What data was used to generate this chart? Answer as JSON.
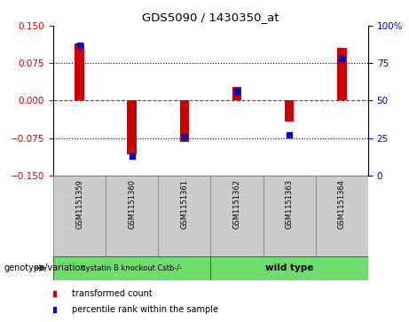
{
  "title": "GDS5090 / 1430350_at",
  "samples": [
    "GSM1151359",
    "GSM1151360",
    "GSM1151361",
    "GSM1151362",
    "GSM1151363",
    "GSM1151364"
  ],
  "red_values": [
    0.115,
    -0.107,
    -0.082,
    0.028,
    -0.042,
    0.105
  ],
  "blue_values_pct": [
    87,
    13,
    26,
    56,
    27,
    78
  ],
  "group1_label": "cystatin B knockout Cstb-/-",
  "group2_label": "wild type",
  "group_color": "#6ddd6d",
  "ylim_left": [
    -0.15,
    0.15
  ],
  "ylim_right": [
    0,
    100
  ],
  "yticks_left": [
    -0.15,
    -0.075,
    0,
    0.075,
    0.15
  ],
  "yticks_right": [
    0,
    25,
    50,
    75,
    100
  ],
  "red_color": "#cc0000",
  "blue_color": "#0000cc",
  "bar_width": 0.18,
  "legend_red": "transformed count",
  "legend_blue": "percentile rank within the sample",
  "genotype_label": "genotype/variation",
  "sample_bg": "#cccccc",
  "plot_bg": "#ffffff"
}
